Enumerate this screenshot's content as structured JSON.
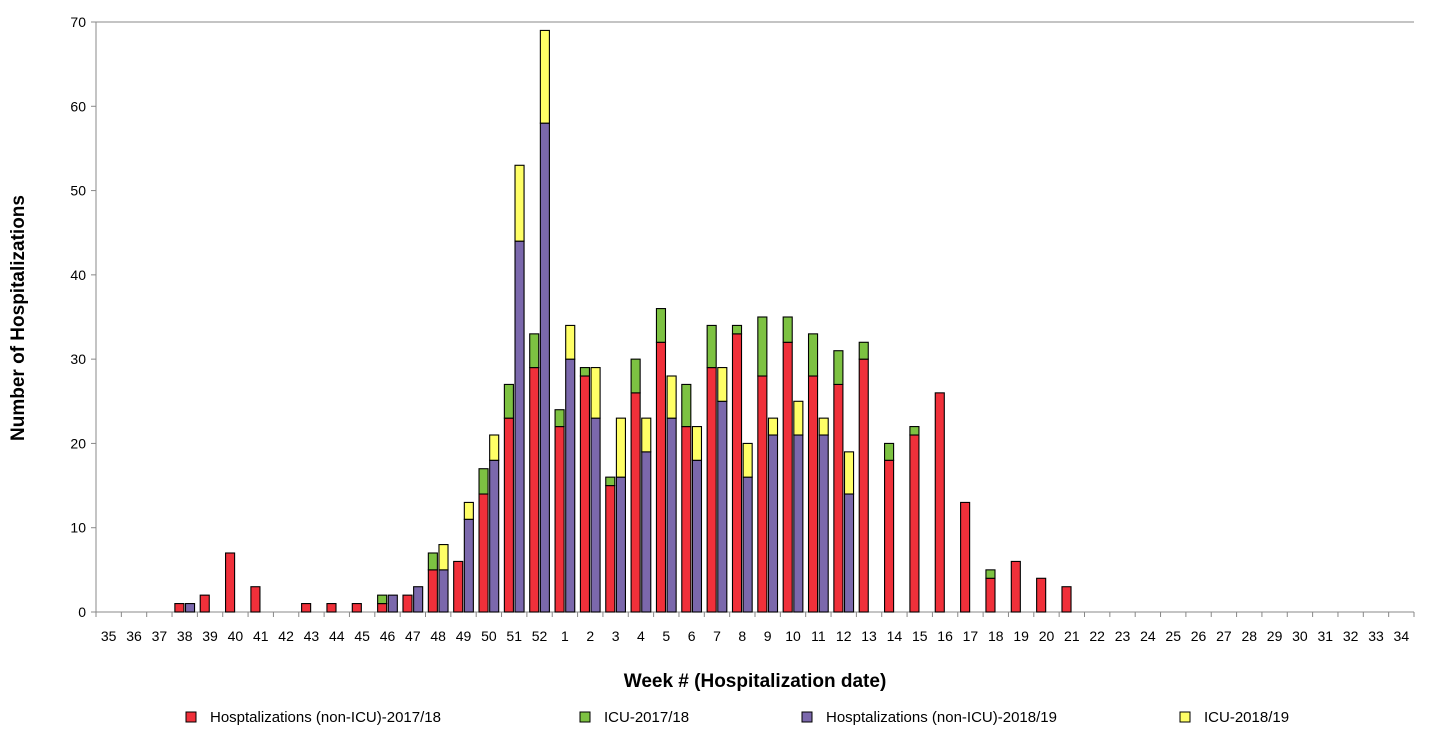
{
  "chart_data": {
    "type": "bar",
    "stacked": true,
    "xlabel": "Week # (Hospitalization date)",
    "ylabel": "Number of Hospitalizations",
    "ylim": [
      0,
      70
    ],
    "yticks": [
      0,
      10,
      20,
      30,
      40,
      50,
      60,
      70
    ],
    "grid": false,
    "legend_position": "bottom",
    "weeks": [
      "35",
      "36",
      "37",
      "38",
      "39",
      "40",
      "41",
      "42",
      "43",
      "44",
      "45",
      "46",
      "47",
      "48",
      "49",
      "50",
      "51",
      "52",
      "1",
      "2",
      "3",
      "4",
      "5",
      "6",
      "7",
      "8",
      "9",
      "10",
      "11",
      "12",
      "13",
      "14",
      "15",
      "16",
      "17",
      "18",
      "19",
      "20",
      "21",
      "22",
      "23",
      "24",
      "25",
      "26",
      "27",
      "28",
      "29",
      "30",
      "31",
      "32",
      "33",
      "34"
    ],
    "groups": [
      {
        "season": "2017/18",
        "series": [
          {
            "name": "Hosptalizations (non-ICU)-2017/18",
            "color": "#f0303a",
            "values": [
              0,
              0,
              0,
              1,
              2,
              7,
              3,
              0,
              1,
              1,
              1,
              1,
              2,
              5,
              6,
              14,
              23,
              29,
              22,
              28,
              15,
              26,
              32,
              22,
              29,
              33,
              28,
              32,
              28,
              27,
              30,
              18,
              21,
              26,
              13,
              4,
              6,
              4,
              3,
              0,
              0,
              0,
              0,
              0,
              0,
              0,
              0,
              0,
              0,
              0,
              0,
              0
            ]
          },
          {
            "name": "ICU-2017/18",
            "color": "#7dc242",
            "values": [
              0,
              0,
              0,
              0,
              0,
              0,
              0,
              0,
              0,
              0,
              0,
              1,
              0,
              2,
              0,
              3,
              4,
              4,
              2,
              1,
              1,
              4,
              4,
              5,
              5,
              1,
              7,
              3,
              5,
              4,
              2,
              2,
              1,
              0,
              0,
              1,
              0,
              0,
              0,
              0,
              0,
              0,
              0,
              0,
              0,
              0,
              0,
              0,
              0,
              0,
              0,
              0
            ]
          }
        ]
      },
      {
        "season": "2018/19",
        "series": [
          {
            "name": "Hosptalizations (non-ICU)-2018/19",
            "color": "#7b68ac",
            "values": [
              0,
              0,
              0,
              1,
              0,
              0,
              0,
              0,
              0,
              0,
              0,
              2,
              3,
              5,
              11,
              18,
              44,
              58,
              30,
              23,
              16,
              19,
              23,
              18,
              25,
              16,
              21,
              21,
              21,
              14,
              0,
              0,
              0,
              0,
              0,
              0,
              0,
              0,
              0,
              0,
              0,
              0,
              0,
              0,
              0,
              0,
              0,
              0,
              0,
              0,
              0,
              0
            ]
          },
          {
            "name": "ICU-2018/19",
            "color": "#ffff66",
            "values": [
              0,
              0,
              0,
              0,
              0,
              0,
              0,
              0,
              0,
              0,
              0,
              0,
              0,
              3,
              2,
              3,
              9,
              11,
              4,
              6,
              7,
              4,
              5,
              4,
              4,
              4,
              2,
              4,
              2,
              5,
              0,
              0,
              0,
              0,
              0,
              0,
              0,
              0,
              0,
              0,
              0,
              0,
              0,
              0,
              0,
              0,
              0,
              0,
              0,
              0,
              0,
              0
            ]
          }
        ]
      }
    ],
    "x2018_range": [
      "47",
      "13"
    ]
  },
  "legend": [
    {
      "label": "Hosptalizations (non-ICU)-2017/18",
      "color": "#f0303a"
    },
    {
      "label": "ICU-2017/18",
      "color": "#7dc242"
    },
    {
      "label": "Hosptalizations (non-ICU)-2018/19",
      "color": "#7b68ac"
    },
    {
      "label": "ICU-2018/19",
      "color": "#ffff66"
    }
  ]
}
